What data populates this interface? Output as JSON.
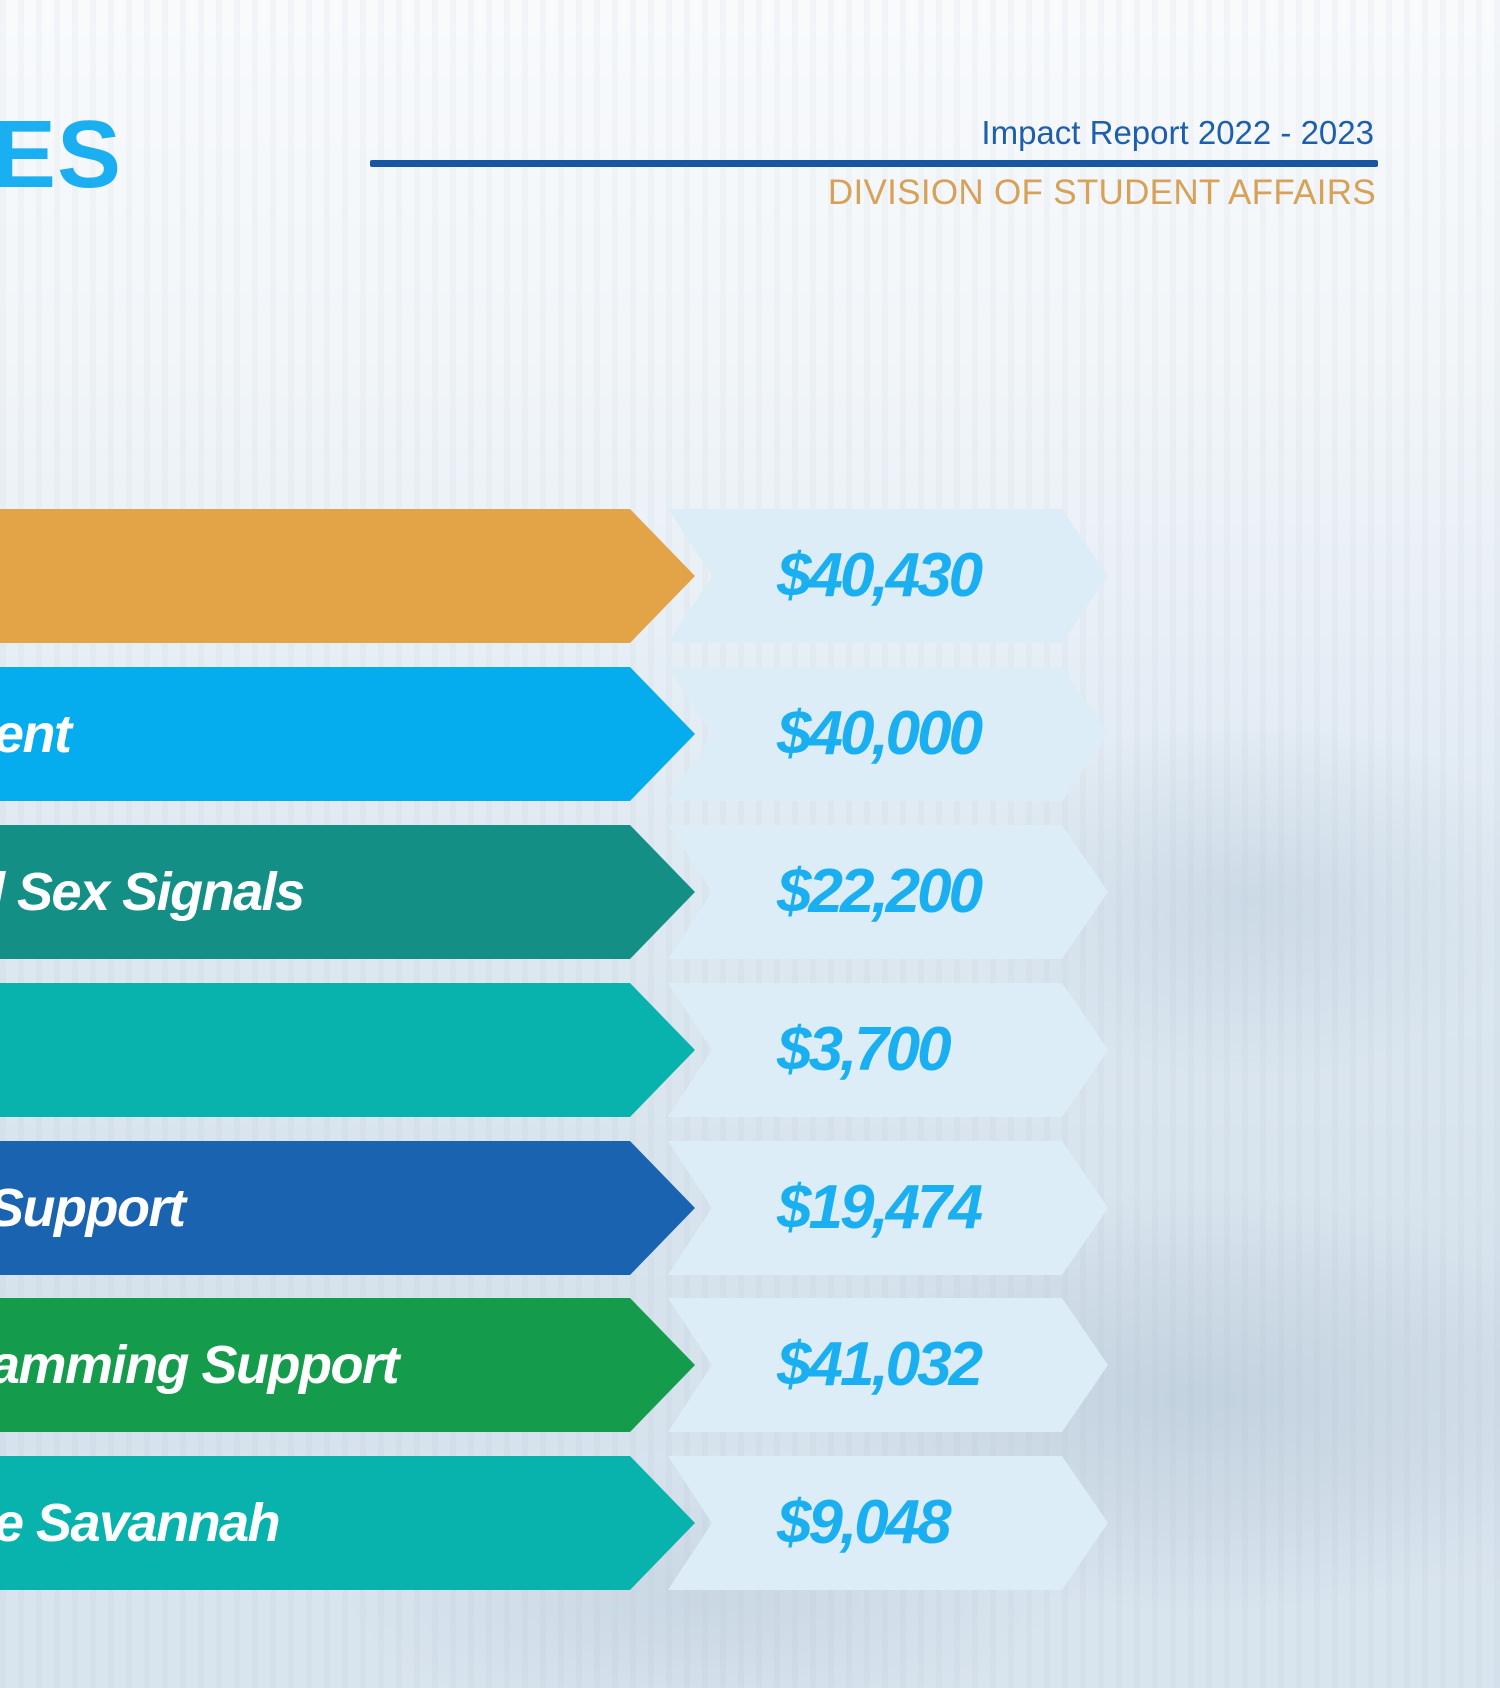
{
  "header": {
    "title_fragment": "ES",
    "report_title": "Impact Report 2022 - 2023",
    "division": "DIVISION OF STUDENT AFFAIRS"
  },
  "rows": [
    {
      "label": "",
      "amount": "$40,430",
      "color": "#e3a448"
    },
    {
      "label": "ent",
      "amount": "$40,000",
      "color": "#05acee"
    },
    {
      "label": "l Sex Signals",
      "amount": "$22,200",
      "color": "#148f86"
    },
    {
      "label": "",
      "amount": "$3,700",
      "color": "#08b3ad"
    },
    {
      "label": "Support",
      "amount": "$19,474",
      "color": "#1a63b1"
    },
    {
      "label": "amming Support",
      "amount": "$41,032",
      "color": "#149b4c"
    },
    {
      "label": "e Savannah",
      "amount": "$9,048",
      "color": "#08b3ad"
    }
  ]
}
